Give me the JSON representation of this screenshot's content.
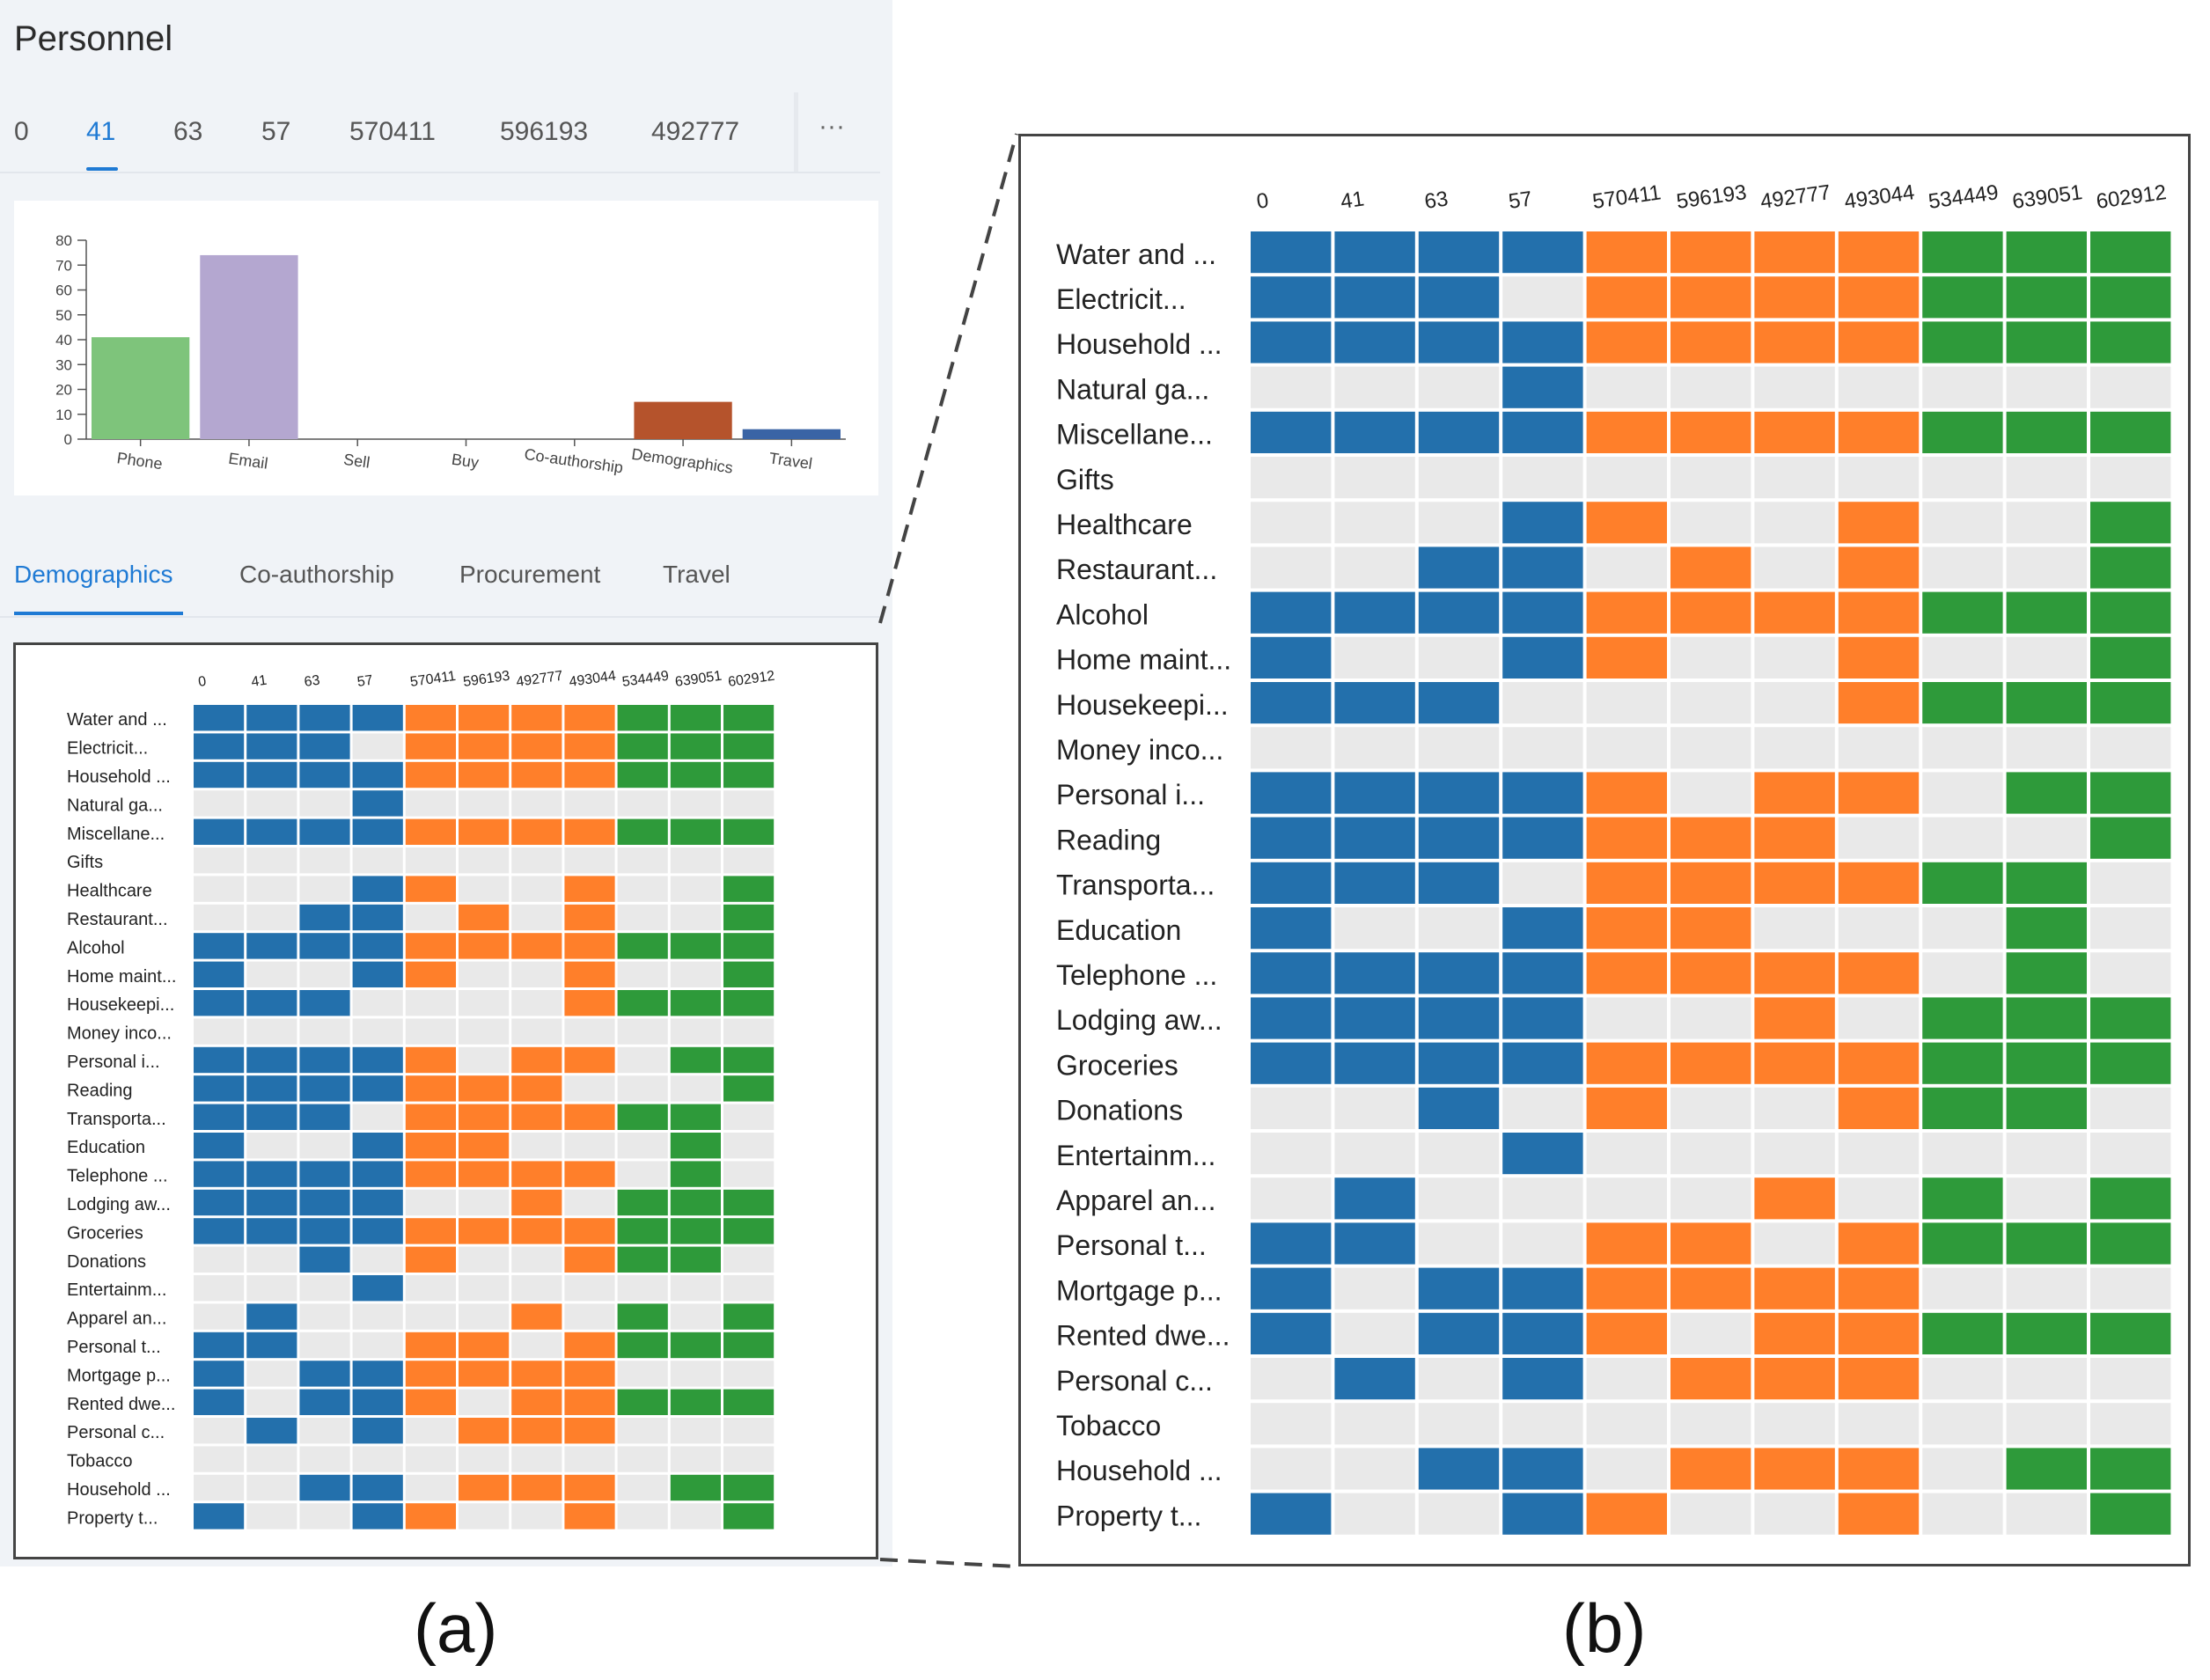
{
  "panel": {
    "title": "Personnel"
  },
  "user_tabs": [
    "0",
    "41",
    "63",
    "57",
    "570411",
    "596193",
    "492777"
  ],
  "active_user_tab": "41",
  "more_label": "···",
  "category_tabs": [
    "Demographics",
    "Co-authorship",
    "Procurement",
    "Travel"
  ],
  "active_category_tab": "Demographics",
  "figure_labels": {
    "a": "(a)",
    "b": "(b)"
  },
  "colors": {
    "blue": "#2370ac",
    "orange": "#ff7f2a",
    "green": "#2e9a3a",
    "empty": "#e9e9e9"
  },
  "chart_data": [
    {
      "type": "bar",
      "title": "",
      "categories": [
        "Phone",
        "Email",
        "Sell",
        "Buy",
        "Co-authorship",
        "Demographics",
        "Travel"
      ],
      "values": [
        41,
        74,
        0,
        0,
        0,
        15,
        4
      ],
      "colors": [
        "#7ec47b",
        "#b4a7d0",
        "#cccccc",
        "#cccccc",
        "#cccccc",
        "#b5532c",
        "#3a64a5"
      ],
      "ylim": [
        0,
        80
      ],
      "yticks": [
        0,
        10,
        20,
        30,
        40,
        50,
        60,
        70,
        80
      ],
      "xlabel": "",
      "ylabel": ""
    },
    {
      "type": "heatmap",
      "columns": [
        "0",
        "41",
        "63",
        "57",
        "570411",
        "596193",
        "492777",
        "493044",
        "534449",
        "639051",
        "602912"
      ],
      "column_groups": [
        "blue",
        "blue",
        "blue",
        "blue",
        "orange",
        "orange",
        "orange",
        "orange",
        "green",
        "green",
        "green"
      ],
      "rows": [
        "Water and ...",
        "Electricit...",
        "Household ...",
        "Natural ga...",
        "Miscellane...",
        "Gifts",
        "Healthcare",
        "Restaurant...",
        "Alcohol",
        "Home maint...",
        "Housekeepi...",
        "Money inco...",
        "Personal i...",
        "Reading",
        "Transporta...",
        "Education",
        "Telephone ...",
        "Lodging aw...",
        "Groceries",
        "Donations",
        "Entertainm...",
        "Apparel an...",
        "Personal t...",
        "Mortgage p...",
        "Rented dwe...",
        "Personal c...",
        "Tobacco",
        "Household ...",
        "Property t..."
      ],
      "matrix": [
        [
          1,
          1,
          1,
          1,
          1,
          1,
          1,
          1,
          1,
          1,
          1
        ],
        [
          1,
          1,
          1,
          0,
          1,
          1,
          1,
          1,
          1,
          1,
          1
        ],
        [
          1,
          1,
          1,
          1,
          1,
          1,
          1,
          1,
          1,
          1,
          1
        ],
        [
          0,
          0,
          0,
          1,
          0,
          0,
          0,
          0,
          0,
          0,
          0
        ],
        [
          1,
          1,
          1,
          1,
          1,
          1,
          1,
          1,
          1,
          1,
          1
        ],
        [
          0,
          0,
          0,
          0,
          0,
          0,
          0,
          0,
          0,
          0,
          0
        ],
        [
          0,
          0,
          0,
          1,
          1,
          0,
          0,
          1,
          0,
          0,
          1
        ],
        [
          0,
          0,
          1,
          1,
          0,
          1,
          0,
          1,
          0,
          0,
          1
        ],
        [
          1,
          1,
          1,
          1,
          1,
          1,
          1,
          1,
          1,
          1,
          1
        ],
        [
          1,
          0,
          0,
          1,
          1,
          0,
          0,
          1,
          0,
          0,
          1
        ],
        [
          1,
          1,
          1,
          0,
          0,
          0,
          0,
          1,
          1,
          1,
          1
        ],
        [
          0,
          0,
          0,
          0,
          0,
          0,
          0,
          0,
          0,
          0,
          0
        ],
        [
          1,
          1,
          1,
          1,
          1,
          0,
          1,
          1,
          0,
          1,
          1
        ],
        [
          1,
          1,
          1,
          1,
          1,
          1,
          1,
          0,
          0,
          0,
          1
        ],
        [
          1,
          1,
          1,
          0,
          1,
          1,
          1,
          1,
          1,
          1,
          0
        ],
        [
          1,
          0,
          0,
          1,
          1,
          1,
          0,
          0,
          0,
          1,
          0
        ],
        [
          1,
          1,
          1,
          1,
          1,
          1,
          1,
          1,
          0,
          1,
          0
        ],
        [
          1,
          1,
          1,
          1,
          0,
          0,
          1,
          0,
          1,
          1,
          1
        ],
        [
          1,
          1,
          1,
          1,
          1,
          1,
          1,
          1,
          1,
          1,
          1
        ],
        [
          0,
          0,
          1,
          0,
          1,
          0,
          0,
          1,
          1,
          1,
          0
        ],
        [
          0,
          0,
          0,
          1,
          0,
          0,
          0,
          0,
          0,
          0,
          0
        ],
        [
          0,
          1,
          0,
          0,
          0,
          0,
          1,
          0,
          1,
          0,
          1
        ],
        [
          1,
          1,
          0,
          0,
          1,
          1,
          0,
          1,
          1,
          1,
          1
        ],
        [
          1,
          0,
          1,
          1,
          1,
          1,
          1,
          1,
          0,
          0,
          0
        ],
        [
          1,
          0,
          1,
          1,
          1,
          0,
          1,
          1,
          1,
          1,
          1
        ],
        [
          0,
          1,
          0,
          1,
          0,
          1,
          1,
          1,
          0,
          0,
          0
        ],
        [
          0,
          0,
          0,
          0,
          0,
          0,
          0,
          0,
          0,
          0,
          0
        ],
        [
          0,
          0,
          1,
          1,
          0,
          1,
          1,
          1,
          0,
          1,
          1
        ],
        [
          1,
          0,
          0,
          1,
          1,
          0,
          0,
          1,
          0,
          0,
          1
        ]
      ]
    }
  ]
}
